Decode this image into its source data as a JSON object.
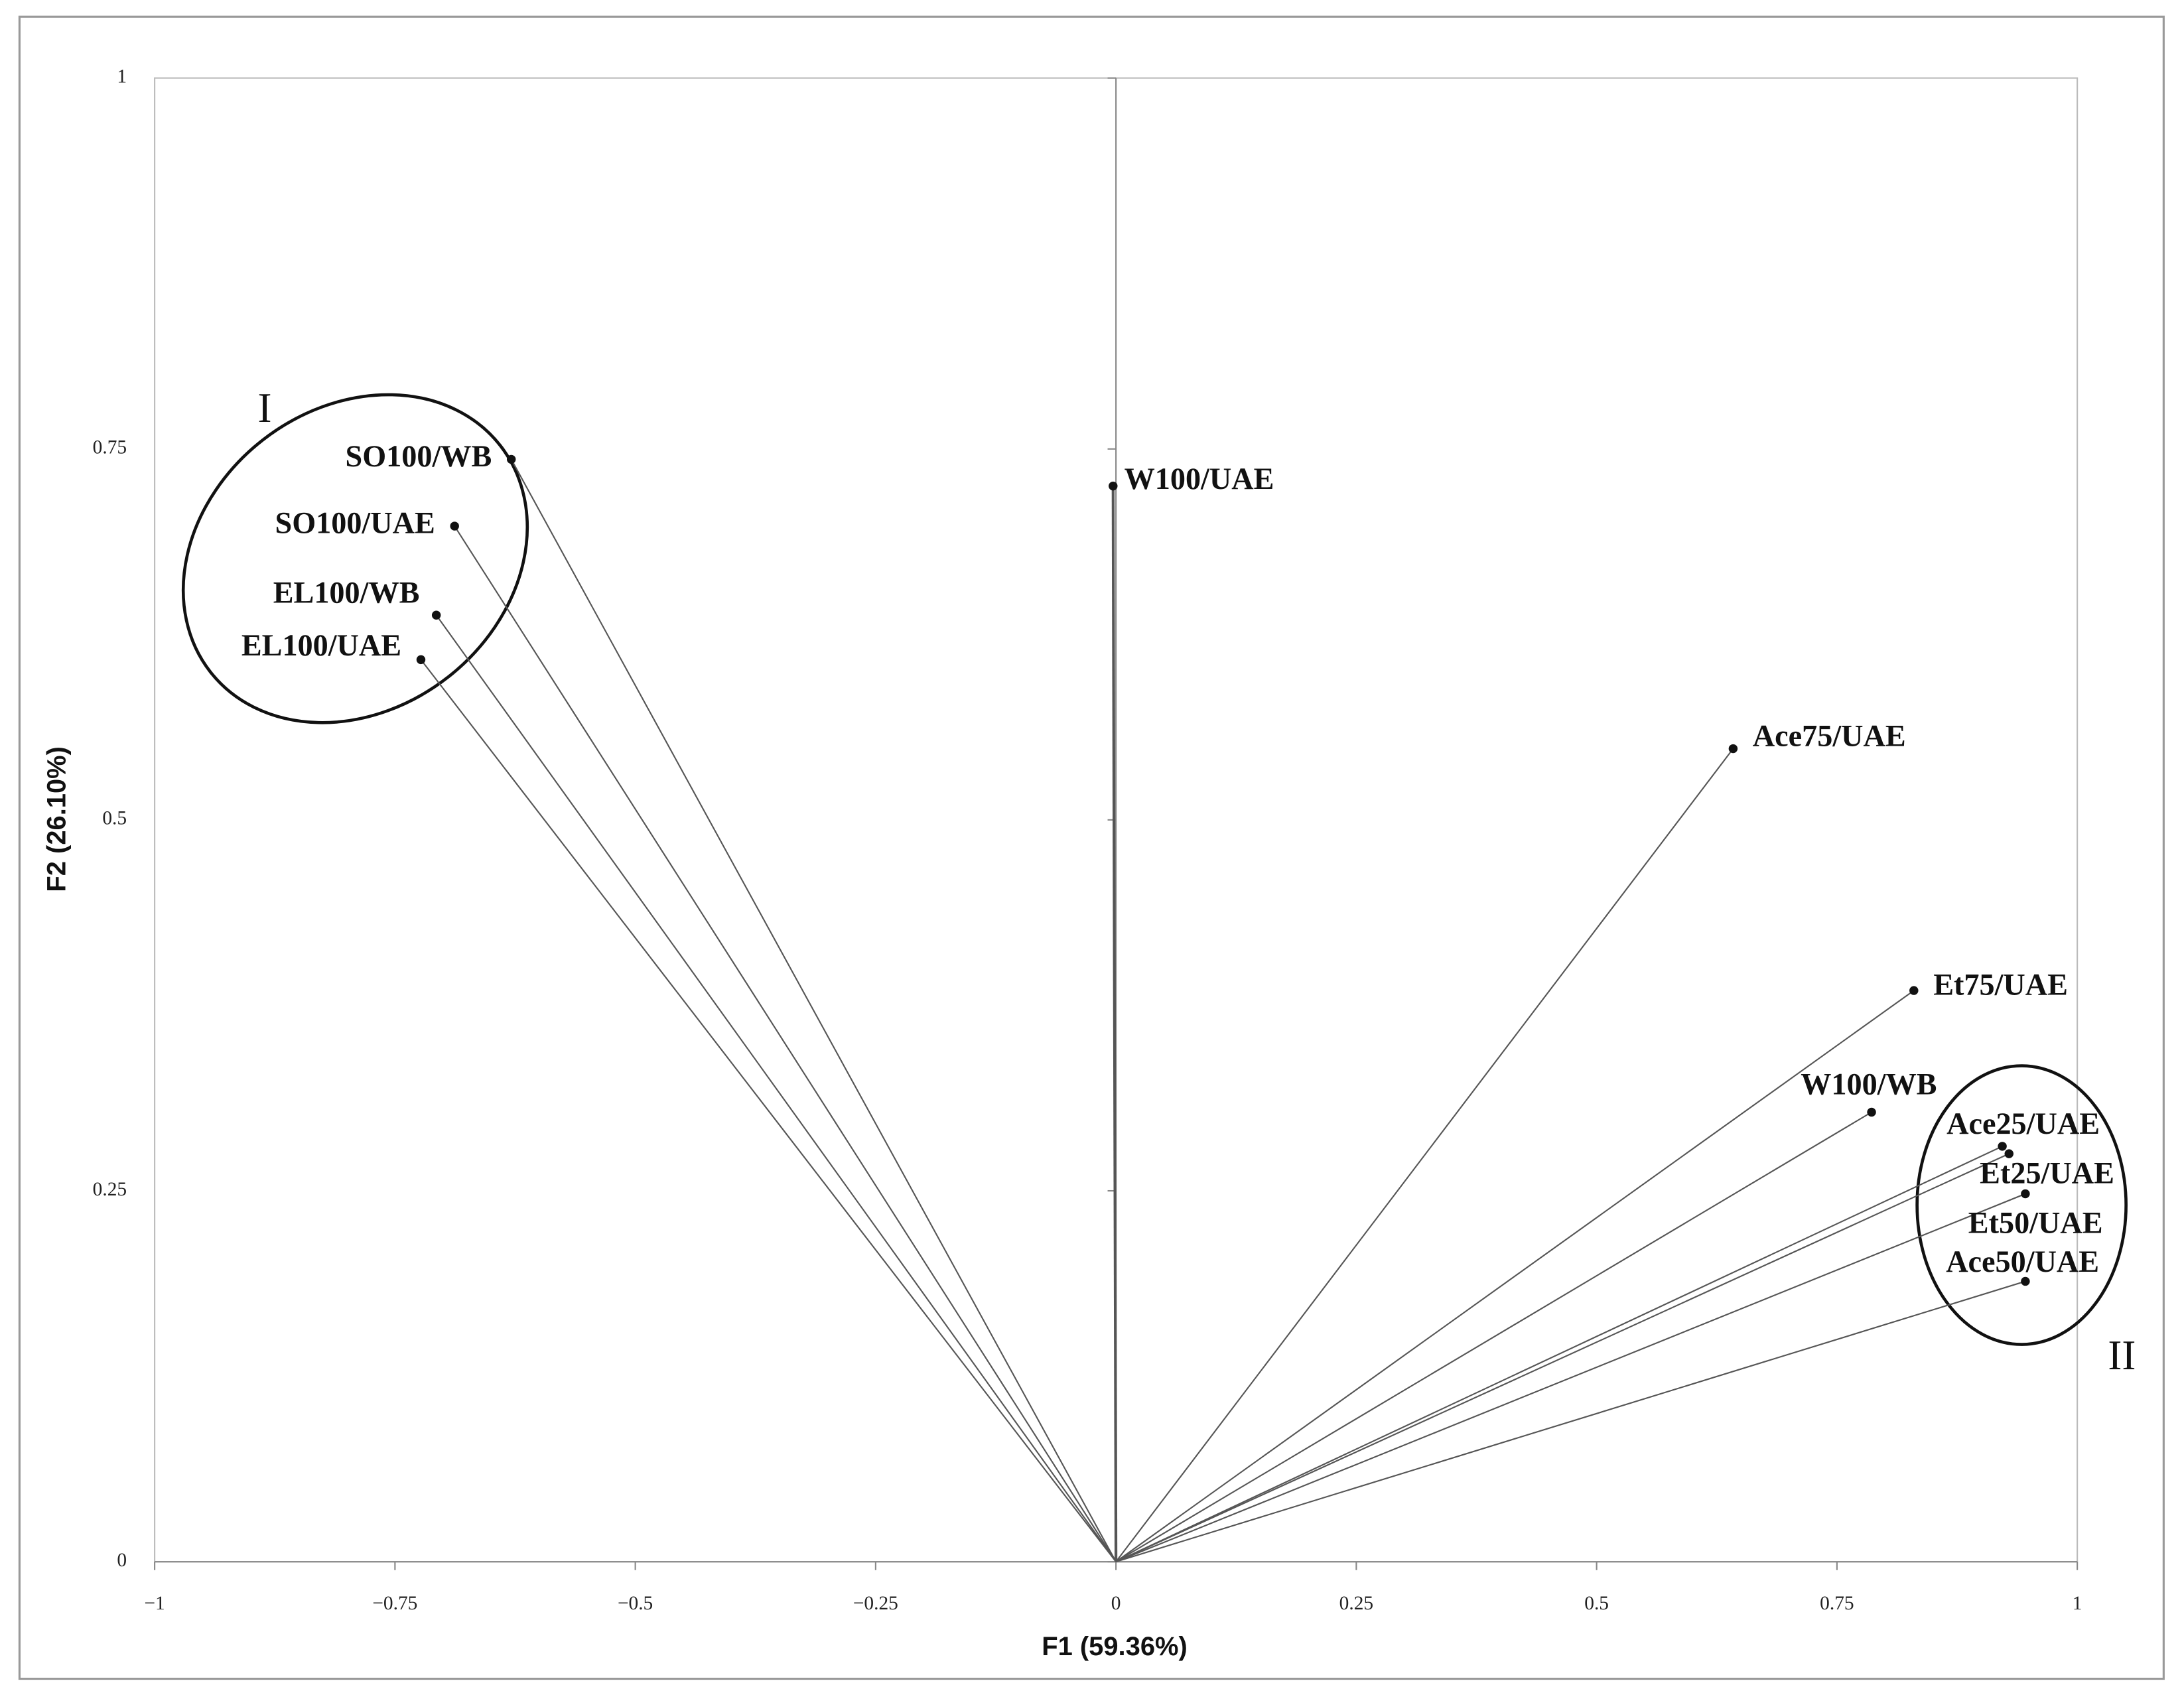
{
  "chart_data": {
    "type": "scatter",
    "x_label": "F1 (59.36%)",
    "y_label": "F2 (26.10%)",
    "labels": [
      "SO100/WB",
      "SO100/UAE",
      "EL100/WB",
      "EL100/UAE",
      "W100/UAE",
      "Ace75/UAE",
      "Et75/UAE",
      "W100/WB",
      "Ace25/UAE",
      "Et25/UAE",
      "Et50/UAE",
      "Ace50/UAE"
    ],
    "x": [
      -0.629,
      -0.688,
      -0.707,
      -0.723,
      -0.003,
      0.642,
      0.83,
      0.786,
      0.922,
      0.929,
      0.946,
      0.946
    ],
    "values": [
      0.743,
      0.698,
      0.638,
      0.608,
      0.725,
      0.548,
      0.385,
      0.303,
      0.28,
      0.275,
      0.248,
      0.189
    ],
    "color": "#111111",
    "annotations": [
      "I",
      "II"
    ],
    "xlim": [
      -1,
      1
    ],
    "ylim": [
      0,
      1
    ],
    "xticks": [
      {
        "value": -1,
        "label": "−1"
      },
      {
        "value": -0.75,
        "label": "−0.75"
      },
      {
        "value": -0.5,
        "label": "−0.5"
      },
      {
        "value": -0.25,
        "label": "−0.25"
      },
      0,
      0.25,
      0.5,
      0.75,
      1
    ],
    "yticks": [
      0,
      0.25,
      0.5,
      0.75,
      1
    ]
  }
}
